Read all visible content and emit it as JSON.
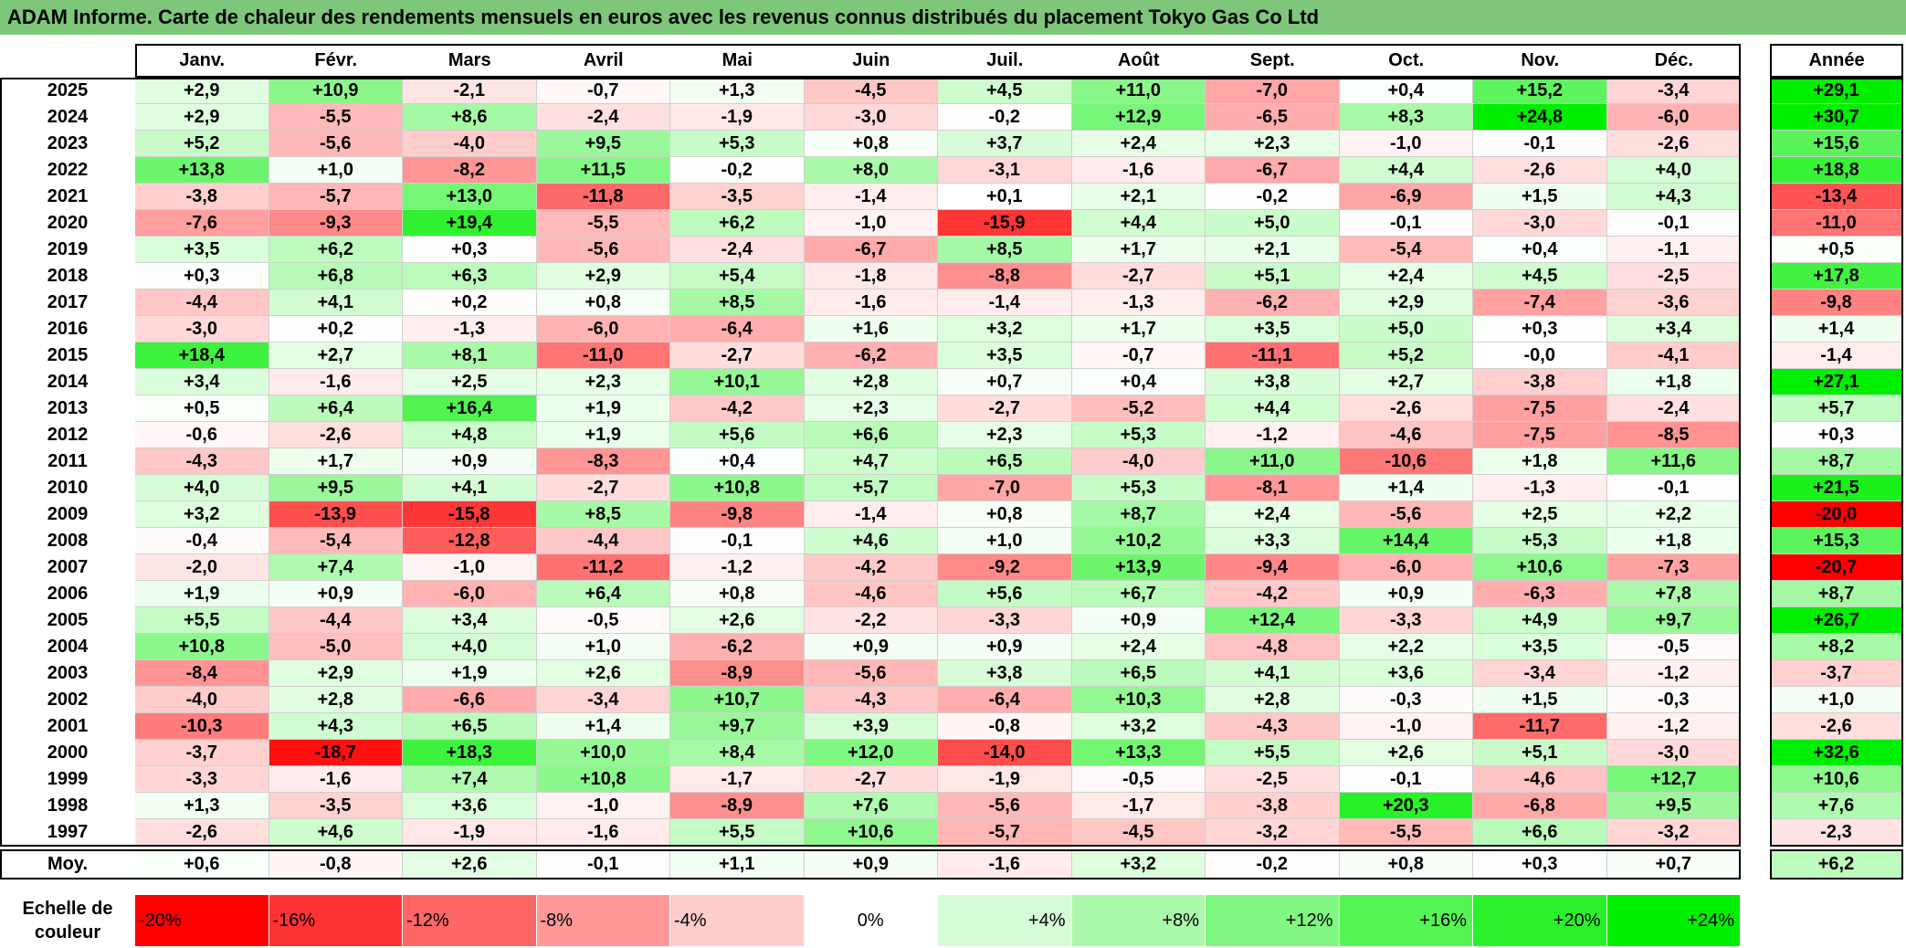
{
  "title": "ADAM Informe. Carte de chaleur des rendements mensuels en euros avec les revenus connus distribués du placement Tokyo Gas Co Ltd",
  "header": {
    "months": [
      "Janv.",
      "Févr.",
      "Mars",
      "Avril",
      "Mai",
      "Juin",
      "Juil.",
      "Août",
      "Sept.",
      "Oct.",
      "Nov.",
      "Déc."
    ],
    "year_col": "Année"
  },
  "footer": {
    "avg_label": "Moy.",
    "scale_label_line1": "Echelle de",
    "scale_label_line2": "couleur",
    "scale_steps": [
      "-20%",
      "-16%",
      "-12%",
      "-8%",
      "-4%",
      "0%",
      "+4%",
      "+8%",
      "+12%",
      "+16%",
      "+20%",
      "+24%"
    ]
  },
  "colors": {
    "title_bg": "#7dc67a",
    "negative_max": "#ff0000",
    "zero": "#ffffff",
    "positive_max": "#00ee00"
  },
  "chart_data": {
    "type": "heatmap",
    "columns": [
      "Janv.",
      "Févr.",
      "Mars",
      "Avril",
      "Mai",
      "Juin",
      "Juil.",
      "Août",
      "Sept.",
      "Oct.",
      "Nov.",
      "Déc.",
      "Année"
    ],
    "rows": [
      {
        "year": "2025",
        "values": [
          "+2,9",
          "+10,9",
          "-2,1",
          "-0,7",
          "+1,3",
          "-4,5",
          "+4,5",
          "+11,0",
          "-7,0",
          "+0,4",
          "+15,2",
          "-3,4"
        ],
        "annual": "+29,1"
      },
      {
        "year": "2024",
        "values": [
          "+2,9",
          "-5,5",
          "+8,6",
          "-2,4",
          "-1,9",
          "-3,0",
          "-0,2",
          "+12,9",
          "-6,5",
          "+8,3",
          "+24,8",
          "-6,0"
        ],
        "annual": "+30,7"
      },
      {
        "year": "2023",
        "values": [
          "+5,2",
          "-5,6",
          "-4,0",
          "+9,5",
          "+5,3",
          "+0,8",
          "+3,7",
          "+2,4",
          "+2,3",
          "-1,0",
          "-0,1",
          "-2,6"
        ],
        "annual": "+15,6"
      },
      {
        "year": "2022",
        "values": [
          "+13,8",
          "+1,0",
          "-8,2",
          "+11,5",
          "-0,2",
          "+8,0",
          "-3,1",
          "-1,6",
          "-6,7",
          "+4,4",
          "-2,6",
          "+4,0"
        ],
        "annual": "+18,8"
      },
      {
        "year": "2021",
        "values": [
          "-3,8",
          "-5,7",
          "+13,0",
          "-11,8",
          "-3,5",
          "-1,4",
          "+0,1",
          "+2,1",
          "-0,2",
          "-6,9",
          "+1,5",
          "+4,3"
        ],
        "annual": "-13,4"
      },
      {
        "year": "2020",
        "values": [
          "-7,6",
          "-9,3",
          "+19,4",
          "-5,5",
          "+6,2",
          "-1,0",
          "-15,9",
          "+4,4",
          "+5,0",
          "-0,1",
          "-3,0",
          "-0,1"
        ],
        "annual": "-11,0"
      },
      {
        "year": "2019",
        "values": [
          "+3,5",
          "+6,2",
          "+0,3",
          "-5,6",
          "-2,4",
          "-6,7",
          "+8,5",
          "+1,7",
          "+2,1",
          "-5,4",
          "+0,4",
          "-1,1"
        ],
        "annual": "+0,5"
      },
      {
        "year": "2018",
        "values": [
          "+0,3",
          "+6,8",
          "+6,3",
          "+2,9",
          "+5,4",
          "-1,8",
          "-8,8",
          "-2,7",
          "+5,1",
          "+2,4",
          "+4,5",
          "-2,5"
        ],
        "annual": "+17,8"
      },
      {
        "year": "2017",
        "values": [
          "-4,4",
          "+4,1",
          "+0,2",
          "+0,8",
          "+8,5",
          "-1,6",
          "-1,4",
          "-1,3",
          "-6,2",
          "+2,9",
          "-7,4",
          "-3,6"
        ],
        "annual": "-9,8"
      },
      {
        "year": "2016",
        "values": [
          "-3,0",
          "+0,2",
          "-1,3",
          "-6,0",
          "-6,4",
          "+1,6",
          "+3,2",
          "+1,7",
          "+3,5",
          "+5,0",
          "+0,3",
          "+3,4"
        ],
        "annual": "+1,4"
      },
      {
        "year": "2015",
        "values": [
          "+18,4",
          "+2,7",
          "+8,1",
          "-11,0",
          "-2,7",
          "-6,2",
          "+3,5",
          "-0,7",
          "-11,1",
          "+5,2",
          "-0,0",
          "-4,1"
        ],
        "annual": "-1,4"
      },
      {
        "year": "2014",
        "values": [
          "+3,4",
          "-1,6",
          "+2,5",
          "+2,3",
          "+10,1",
          "+2,8",
          "+0,7",
          "+0,4",
          "+3,8",
          "+2,7",
          "-3,8",
          "+1,8"
        ],
        "annual": "+27,1"
      },
      {
        "year": "2013",
        "values": [
          "+0,5",
          "+6,4",
          "+16,4",
          "+1,9",
          "-4,2",
          "+2,3",
          "-2,7",
          "-5,2",
          "+4,4",
          "-2,6",
          "-7,5",
          "-2,4"
        ],
        "annual": "+5,7"
      },
      {
        "year": "2012",
        "values": [
          "-0,6",
          "-2,6",
          "+4,8",
          "+1,9",
          "+5,6",
          "+6,6",
          "+2,3",
          "+5,3",
          "-1,2",
          "-4,6",
          "-7,5",
          "-8,5"
        ],
        "annual": "+0,3"
      },
      {
        "year": "2011",
        "values": [
          "-4,3",
          "+1,7",
          "+0,9",
          "-8,3",
          "+0,4",
          "+4,7",
          "+6,5",
          "-4,0",
          "+11,0",
          "-10,6",
          "+1,8",
          "+11,6"
        ],
        "annual": "+8,7"
      },
      {
        "year": "2010",
        "values": [
          "+4,0",
          "+9,5",
          "+4,1",
          "-2,7",
          "+10,8",
          "+5,7",
          "-7,0",
          "+5,3",
          "-8,1",
          "+1,4",
          "-1,3",
          "-0,1"
        ],
        "annual": "+21,5"
      },
      {
        "year": "2009",
        "values": [
          "+3,2",
          "-13,9",
          "-15,8",
          "+8,5",
          "-9,8",
          "-1,4",
          "+0,8",
          "+8,7",
          "+2,4",
          "-5,6",
          "+2,5",
          "+2,2"
        ],
        "annual": "-20,0"
      },
      {
        "year": "2008",
        "values": [
          "-0,4",
          "-5,4",
          "-12,8",
          "-4,4",
          "-0,1",
          "+4,6",
          "+1,0",
          "+10,2",
          "+3,3",
          "+14,4",
          "+5,3",
          "+1,8"
        ],
        "annual": "+15,3"
      },
      {
        "year": "2007",
        "values": [
          "-2,0",
          "+7,4",
          "-1,0",
          "-11,2",
          "-1,2",
          "-4,2",
          "-9,2",
          "+13,9",
          "-9,4",
          "-6,0",
          "+10,6",
          "-7,3"
        ],
        "annual": "-20,7"
      },
      {
        "year": "2006",
        "values": [
          "+1,9",
          "+0,9",
          "-6,0",
          "+6,4",
          "+0,8",
          "-4,6",
          "+5,6",
          "+6,7",
          "-4,2",
          "+0,9",
          "-6,3",
          "+7,8"
        ],
        "annual": "+8,7"
      },
      {
        "year": "2005",
        "values": [
          "+5,5",
          "-4,4",
          "+3,4",
          "-0,5",
          "+2,6",
          "-2,2",
          "-3,3",
          "+0,9",
          "+12,4",
          "-3,3",
          "+4,9",
          "+9,7"
        ],
        "annual": "+26,7"
      },
      {
        "year": "2004",
        "values": [
          "+10,8",
          "-5,0",
          "+4,0",
          "+1,0",
          "-6,2",
          "+0,9",
          "+0,9",
          "+2,4",
          "-4,8",
          "+2,2",
          "+3,5",
          "-0,5"
        ],
        "annual": "+8,2"
      },
      {
        "year": "2003",
        "values": [
          "-8,4",
          "+2,9",
          "+1,9",
          "+2,6",
          "-8,9",
          "-5,6",
          "+3,8",
          "+6,5",
          "+4,1",
          "+3,6",
          "-3,4",
          "-1,2"
        ],
        "annual": "-3,7"
      },
      {
        "year": "2002",
        "values": [
          "-4,0",
          "+2,8",
          "-6,6",
          "-3,4",
          "+10,7",
          "-4,3",
          "-6,4",
          "+10,3",
          "+2,8",
          "-0,3",
          "+1,5",
          "-0,3"
        ],
        "annual": "+1,0"
      },
      {
        "year": "2001",
        "values": [
          "-10,3",
          "+4,3",
          "+6,5",
          "+1,4",
          "+9,7",
          "+3,9",
          "-0,8",
          "+3,2",
          "-4,3",
          "-1,0",
          "-11,7",
          "-1,2"
        ],
        "annual": "-2,6"
      },
      {
        "year": "2000",
        "values": [
          "-3,7",
          "-18,7",
          "+18,3",
          "+10,0",
          "+8,4",
          "+12,0",
          "-14,0",
          "+13,3",
          "+5,5",
          "+2,6",
          "+5,1",
          "-3,0"
        ],
        "annual": "+32,6"
      },
      {
        "year": "1999",
        "values": [
          "-3,3",
          "-1,6",
          "+7,4",
          "+10,8",
          "-1,7",
          "-2,7",
          "-1,9",
          "-0,5",
          "-2,5",
          "-0,1",
          "-4,6",
          "+12,7"
        ],
        "annual": "+10,6"
      },
      {
        "year": "1998",
        "values": [
          "+1,3",
          "-3,5",
          "+3,6",
          "-1,0",
          "-8,9",
          "+7,6",
          "-5,6",
          "-1,7",
          "-3,8",
          "+20,3",
          "-6,8",
          "+9,5"
        ],
        "annual": "+7,6"
      },
      {
        "year": "1997",
        "values": [
          "-2,6",
          "+4,6",
          "-1,9",
          "-1,6",
          "+5,5",
          "+10,6",
          "-5,7",
          "-4,5",
          "-3,2",
          "-5,5",
          "+6,6",
          "-3,2"
        ],
        "annual": "-2,3"
      }
    ],
    "averages": {
      "values": [
        "+0,6",
        "-0,8",
        "+2,6",
        "-0,1",
        "+1,1",
        "+0,9",
        "-1,6",
        "+3,2",
        "-0,2",
        "+0,8",
        "+0,3",
        "+0,7"
      ],
      "annual": "+6,2"
    },
    "color_scale": {
      "min": -20,
      "max": 24,
      "unit": "%"
    }
  }
}
